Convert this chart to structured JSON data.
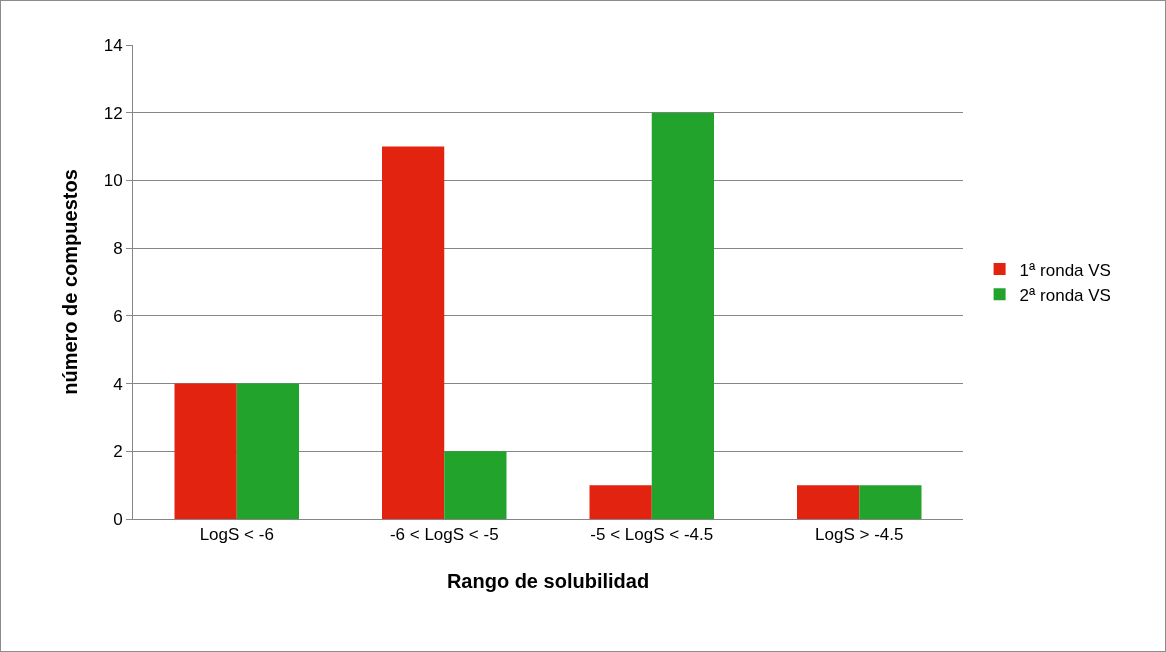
{
  "chart_data": {
    "type": "bar",
    "xlabel": "Rango de solubilidad",
    "ylabel": "número de compuestos",
    "categories": [
      "LogS < -6",
      "-6 < LogS < -5",
      "-5 < LogS < -4.5",
      "LogS > -4.5"
    ],
    "series": [
      {
        "name": "1ª ronda VS",
        "color": "#e2230f",
        "values": [
          4,
          11,
          1,
          1
        ]
      },
      {
        "name": "2ª ronda VS",
        "color": "#22a32c",
        "values": [
          4,
          2,
          12,
          1
        ]
      }
    ],
    "ylim": [
      0,
      14
    ],
    "yticks": [
      0,
      2,
      4,
      6,
      8,
      10,
      12,
      14
    ],
    "grid": "y",
    "legend": "right"
  }
}
